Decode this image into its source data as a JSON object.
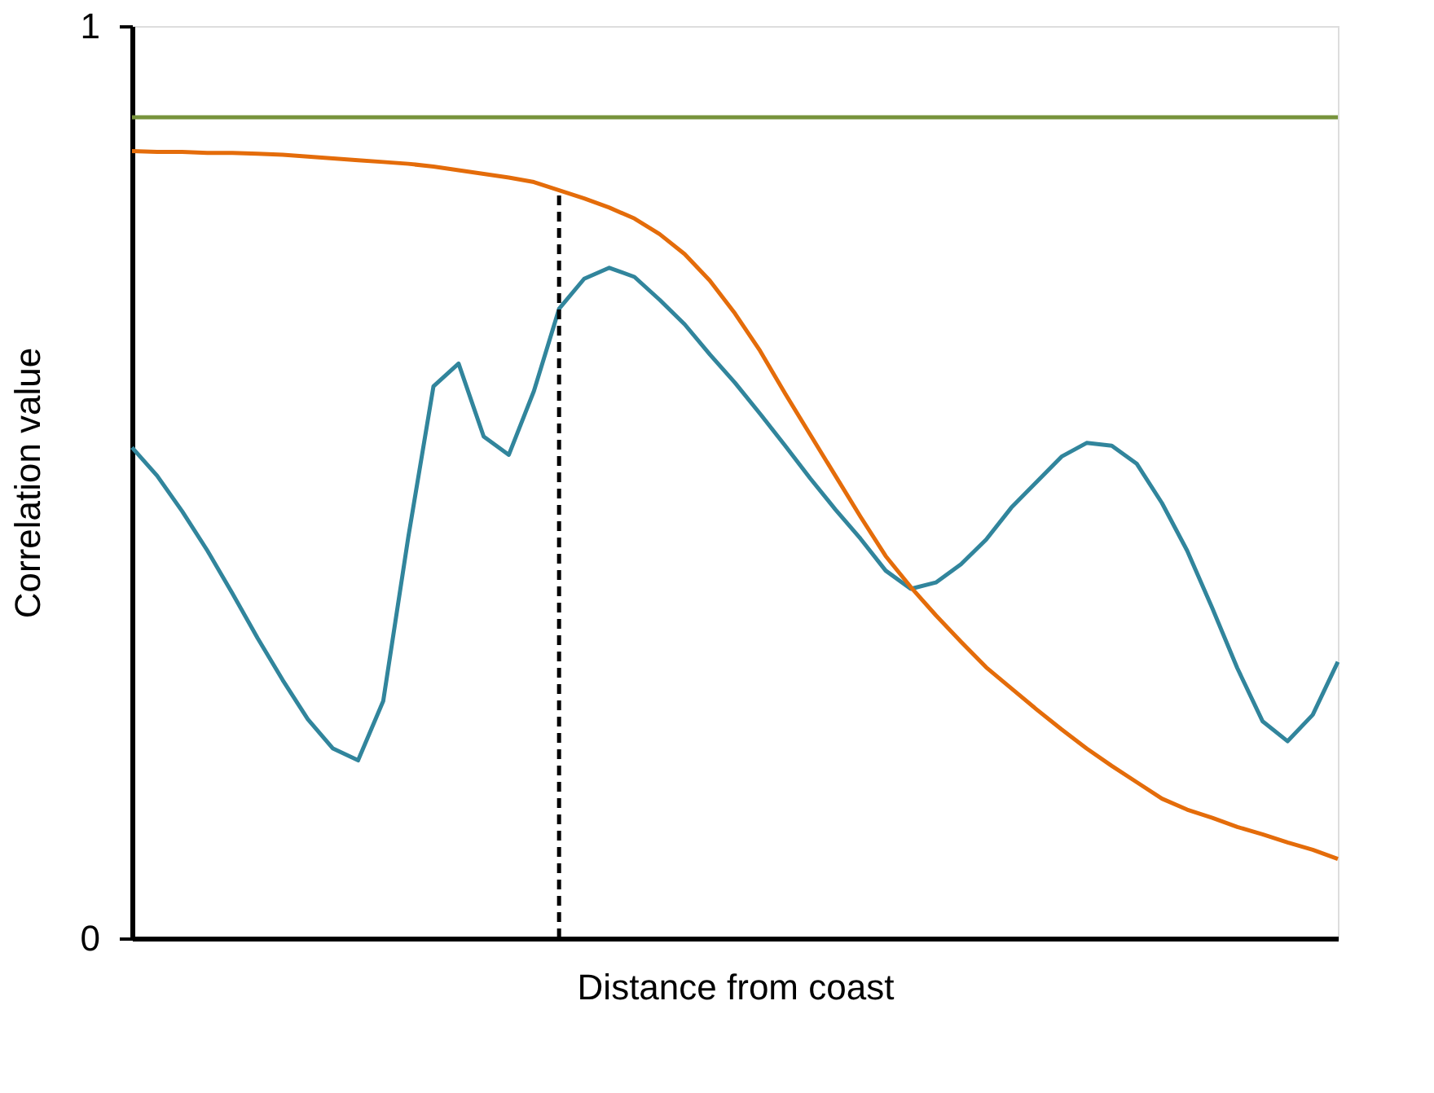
{
  "chart_data": {
    "type": "line",
    "xlabel": "Distance from coast",
    "ylabel": "Correlation value",
    "categories": [
      null,
      null,
      null,
      null,
      null,
      null,
      null,
      null,
      null,
      null,
      null,
      null,
      null,
      null,
      null,
      null,
      null,
      null,
      null,
      null,
      null,
      null,
      null,
      null,
      null,
      null,
      null,
      null,
      null,
      null,
      null,
      null,
      null,
      null,
      null,
      null,
      null,
      null,
      null,
      null,
      null,
      null,
      null,
      null,
      null,
      null,
      null,
      null,
      null
    ],
    "ylim": [
      0,
      1
    ],
    "yticks": [
      0,
      1
    ],
    "tick_labels": "y",
    "series": [
      {
        "color": "#31859c",
        "values": [
          0.538,
          0.507,
          0.468,
          0.425,
          0.378,
          0.329,
          0.283,
          0.24,
          0.208,
          0.195,
          0.26,
          0.44,
          0.605,
          0.63,
          0.55,
          0.53,
          0.6,
          0.69,
          0.723,
          0.735,
          0.725,
          0.7,
          0.673,
          0.64,
          0.609,
          0.575,
          0.54,
          0.504,
          0.47,
          0.438,
          0.403,
          0.383,
          0.39,
          0.41,
          0.437,
          0.472,
          0.5,
          0.528,
          0.543,
          0.54,
          0.52,
          0.477,
          0.425,
          0.362,
          0.296,
          0.238,
          0.216,
          0.245,
          0.303
        ]
      },
      {
        "color": "#e46c0a",
        "values": [
          0.863,
          0.862,
          0.862,
          0.861,
          0.861,
          0.86,
          0.859,
          0.857,
          0.855,
          0.853,
          0.851,
          0.849,
          0.846,
          0.842,
          0.838,
          0.834,
          0.829,
          0.82,
          0.811,
          0.801,
          0.789,
          0.772,
          0.75,
          0.721,
          0.685,
          0.644,
          0.597,
          0.552,
          0.507,
          0.462,
          0.419,
          0.385,
          0.354,
          0.325,
          0.297,
          0.274,
          0.251,
          0.229,
          0.208,
          0.189,
          0.171,
          0.153,
          0.141,
          0.132,
          0.122,
          0.114,
          0.105,
          0.097,
          0.087
        ]
      }
    ],
    "ref_lines": [
      {
        "axis": "y",
        "value": 0.9,
        "color": "#77933c"
      }
    ]
  }
}
